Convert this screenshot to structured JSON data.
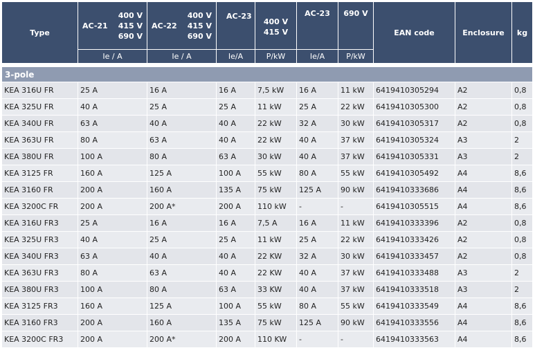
{
  "header": {
    "type": "Type",
    "ac21": "AC-21",
    "ac22": "AC-22",
    "ac23a": "AC-23",
    "ac23b": "AC-23",
    "v400": "400 V",
    "v415": "415 V",
    "v690": "690 V",
    "ean": "EAN code",
    "enclosure": "Enclosure",
    "kg": "kg",
    "unit_ie_a": "Ie / A",
    "unit_iea": "Ie/A",
    "unit_pkw": "P/kW"
  },
  "section": "3-pole",
  "rows": [
    [
      "KEA 316U FR",
      "25 A",
      "16 A",
      "16 A",
      "7,5 kW",
      "16 A",
      "11 kW",
      "6419410305294",
      "A2",
      "0,8"
    ],
    [
      "KEA 325U FR",
      "40 A",
      "25 A",
      "25 A",
      "11 kW",
      "25 A",
      "22 kW",
      "6419410305300",
      "A2",
      "0,8"
    ],
    [
      "KEA 340U FR",
      "63 A",
      "40 A",
      "40 A",
      "22 kW",
      "32 A",
      "30 kW",
      "6419410305317",
      "A2",
      "0,8"
    ],
    [
      "KEA 363U FR",
      "80 A",
      "63 A",
      "40 A",
      "22 kW",
      "40 A",
      "37 kW",
      "6419410305324",
      "A3",
      "2"
    ],
    [
      "KEA 380U FR",
      "100 A",
      "80 A",
      "63 A",
      "30 kW",
      "40 A",
      "37 kW",
      "6419410305331",
      "A3",
      "2"
    ],
    [
      "KEA 3125 FR",
      "160 A",
      "125 A",
      "100 A",
      "55 kW",
      "80 A",
      "55 kW",
      "6419410305492",
      "A4",
      "8,6"
    ],
    [
      "KEA 3160 FR",
      "200 A",
      "160 A",
      "135 A",
      "75 kW",
      "125 A",
      "90 kW",
      "6419410333686",
      "A4",
      "8,6"
    ],
    [
      "KEA 3200C FR",
      "200 A",
      "200 A*",
      "200 A",
      "110 kW",
      "-",
      "-",
      "6419410305515",
      "A4",
      "8,6"
    ],
    [
      "KEA 316U FR3",
      "25 A",
      "16 A",
      "16 A",
      "7,5 A",
      "16 A",
      "11 kW",
      "6419410333396",
      "A2",
      "0,8"
    ],
    [
      "KEA 325U FR3",
      "40 A",
      "25 A",
      "25 A",
      "11 kW",
      "25 A",
      "22 kW",
      "6419410333426",
      "A2",
      "0,8"
    ],
    [
      "KEA 340U FR3",
      "63 A",
      "40 A",
      "40 A",
      "22 KW",
      "32 A",
      "30 kW",
      "6419410333457",
      "A2",
      "0,8"
    ],
    [
      "KEA 363U FR3",
      "80 A",
      "63 A",
      "40 A",
      "22 KW",
      "40 A",
      "37 kW",
      "6419410333488",
      "A3",
      "2"
    ],
    [
      "KEA 380U FR3",
      "100 A",
      "80 A",
      "63 A",
      "33 KW",
      "40 A",
      "37 kW",
      "6419410333518",
      "A3",
      "2"
    ],
    [
      "KEA 3125 FR3",
      "160 A",
      "125 A",
      "100 A",
      "55 kW",
      "80 A",
      "55 kW",
      "6419410333549",
      "A4",
      "8,6"
    ],
    [
      "KEA 3160 FR3",
      "200 A",
      "160 A",
      "135 A",
      "75 kW",
      "125 A",
      "90 kW",
      "6419410333556",
      "A4",
      "8,6"
    ],
    [
      "KEA 3200C FR3",
      "200 A",
      "200 A*",
      "200 A",
      "110 KW",
      "-",
      "-",
      "6419410333563",
      "A4",
      "8,6"
    ]
  ],
  "colors": {
    "header_bg": "#3c4f6e",
    "section_bg": "#8f9bb1",
    "row_bg": "#e3e5ea"
  }
}
